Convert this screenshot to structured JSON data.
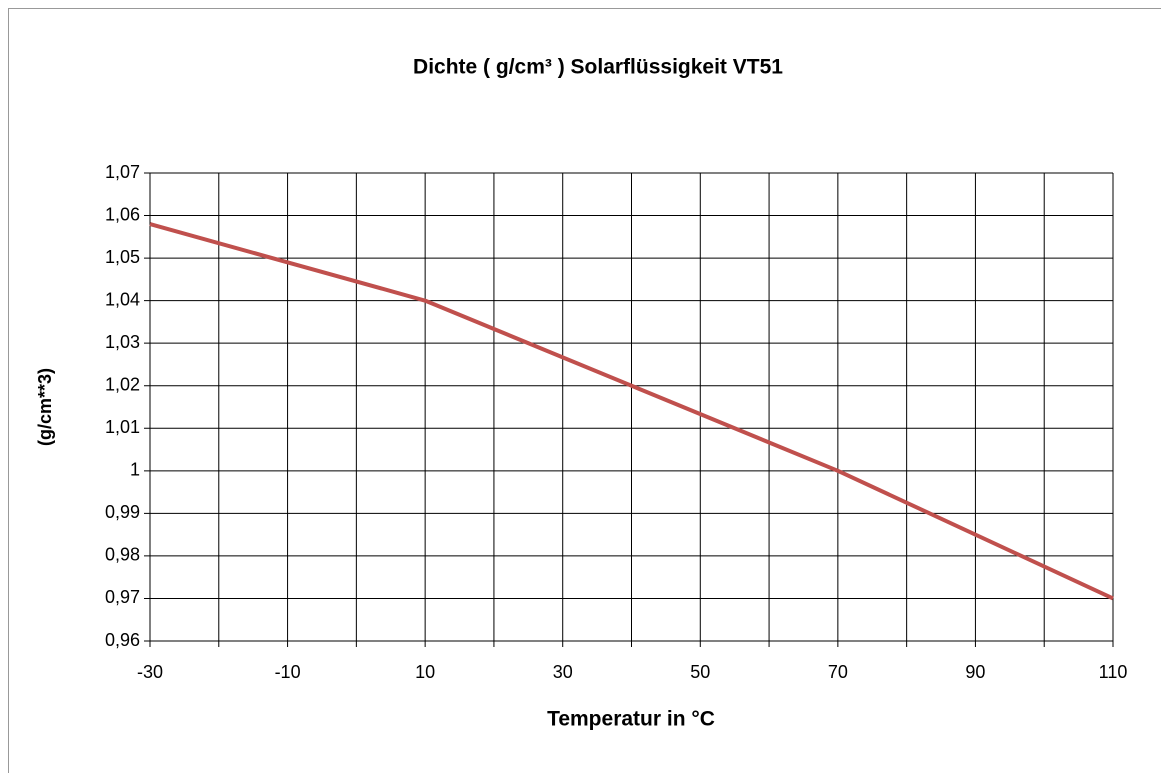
{
  "chart_data": {
    "type": "line",
    "title": "Dichte ( g/cm³ ) Solarflüssigkeit VT51",
    "xlabel": "Temperatur in °C",
    "ylabel": "(g/cm**3)",
    "x": [
      -30,
      10,
      70,
      110
    ],
    "series": [
      {
        "name": "Dichte",
        "color": "#c0504d",
        "values": [
          1.058,
          1.04,
          1.0,
          0.97
        ]
      }
    ],
    "xlim": [
      -30,
      110
    ],
    "xticks": [
      -30,
      -10,
      10,
      30,
      50,
      70,
      90,
      110
    ],
    "xminorticks": [
      -20,
      0,
      20,
      40,
      60,
      80,
      100
    ],
    "ylim": [
      0.96,
      1.07
    ],
    "yticks": [
      {
        "value": 0.96,
        "label": "0,96"
      },
      {
        "value": 0.97,
        "label": "0,97"
      },
      {
        "value": 0.98,
        "label": "0,98"
      },
      {
        "value": 0.99,
        "label": "0,99"
      },
      1,
      {
        "value": 1.01,
        "label": "1,01"
      },
      {
        "value": 1.02,
        "label": "1,02"
      },
      {
        "value": 1.03,
        "label": "1,03"
      },
      {
        "value": 1.04,
        "label": "1,04"
      },
      {
        "value": 1.05,
        "label": "1,05"
      },
      {
        "value": 1.06,
        "label": "1,06"
      },
      {
        "value": 1.07,
        "label": "1,07"
      }
    ],
    "grid": true
  }
}
